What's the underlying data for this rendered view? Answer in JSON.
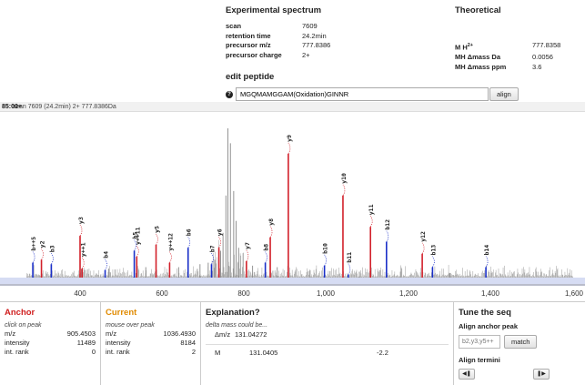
{
  "experimental": {
    "title": "Experimental spectrum",
    "rows": [
      {
        "label": "scan",
        "value": "7609"
      },
      {
        "label": "retention time",
        "value": "24.2min"
      },
      {
        "label": "precursor m/z",
        "value": "777.8386"
      },
      {
        "label": "precursor charge",
        "value": "2+"
      }
    ]
  },
  "theoretical": {
    "title": "Theoretical",
    "rows": [
      {
        "label": "M H2+",
        "value": "777.8358"
      },
      {
        "label": "MH Δmass Da",
        "value": "0.0056"
      },
      {
        "label": "MH Δmass ppm",
        "value": "3.6"
      }
    ]
  },
  "edit": {
    "title": "edit peptide",
    "peptide": "MGQMAMGGAM(Oxidation)GINNR",
    "align_label": "align",
    "help_icon": "question-icon"
  },
  "spectrum": {
    "header": "scan 7609 (24.2min) 2+ 777.8386Da",
    "overlay": "85:00+",
    "x_ticks": [
      "400",
      "600",
      "800",
      "1,000",
      "1,200",
      "1,400",
      "1,600"
    ]
  },
  "chart_data": {
    "type": "bar",
    "x_range": [
      270,
      1600
    ],
    "xlabel": "",
    "ylabel": "",
    "colors": {
      "b_ion": "#1a2fc8",
      "y_ion": "#d2202a",
      "unassigned": "#888888"
    },
    "annotated_peaks": [
      {
        "label": "b++5",
        "mz": 285,
        "intensity": 0.1,
        "ion": "b"
      },
      {
        "label": "y2",
        "mz": 306,
        "intensity": 0.12,
        "ion": "y"
      },
      {
        "label": "b3",
        "mz": 330,
        "intensity": 0.09,
        "ion": "b"
      },
      {
        "label": "y3",
        "mz": 400,
        "intensity": 0.28,
        "ion": "y"
      },
      {
        "label": "y++1",
        "mz": 405,
        "intensity": 0.06,
        "ion": "y"
      },
      {
        "label": "b4",
        "mz": 461,
        "intensity": 0.05,
        "ion": "b"
      },
      {
        "label": "b5",
        "mz": 532,
        "intensity": 0.18,
        "ion": "b"
      },
      {
        "label": "y++11",
        "mz": 538,
        "intensity": 0.14,
        "ion": "y"
      },
      {
        "label": "y5",
        "mz": 585,
        "intensity": 0.22,
        "ion": "y"
      },
      {
        "label": "y++12",
        "mz": 618,
        "intensity": 0.1,
        "ion": "y"
      },
      {
        "label": "b6",
        "mz": 663,
        "intensity": 0.2,
        "ion": "b"
      },
      {
        "label": "b7",
        "mz": 720,
        "intensity": 0.09,
        "ion": "b"
      },
      {
        "label": "y6",
        "mz": 738,
        "intensity": 0.2,
        "ion": "y"
      },
      {
        "label": "y7",
        "mz": 805,
        "intensity": 0.11,
        "ion": "y"
      },
      {
        "label": "b8",
        "mz": 851,
        "intensity": 0.1,
        "ion": "b"
      },
      {
        "label": "y8",
        "mz": 863,
        "intensity": 0.27,
        "ion": "y"
      },
      {
        "label": "y9",
        "mz": 907,
        "intensity": 0.83,
        "ion": "y"
      },
      {
        "label": "b10",
        "mz": 995,
        "intensity": 0.08,
        "ion": "b"
      },
      {
        "label": "y10",
        "mz": 1040,
        "intensity": 0.55,
        "ion": "y"
      },
      {
        "label": "b11",
        "mz": 1053,
        "intensity": 0.02,
        "ion": "b"
      },
      {
        "label": "y11",
        "mz": 1107,
        "intensity": 0.34,
        "ion": "y"
      },
      {
        "label": "b12",
        "mz": 1146,
        "intensity": 0.24,
        "ion": "b"
      },
      {
        "label": "y12",
        "mz": 1233,
        "intensity": 0.16,
        "ion": "y"
      },
      {
        "label": "b13",
        "mz": 1258,
        "intensity": 0.07,
        "ion": "b"
      },
      {
        "label": "b14",
        "mz": 1388,
        "intensity": 0.07,
        "ion": "b"
      }
    ],
    "unassigned_peaks": [
      {
        "mz": 760,
        "intensity": 1.0
      },
      {
        "mz": 766,
        "intensity": 0.9
      },
      {
        "mz": 755,
        "intensity": 0.55
      },
      {
        "mz": 774,
        "intensity": 0.58
      },
      {
        "mz": 780,
        "intensity": 0.38
      },
      {
        "mz": 748,
        "intensity": 0.3
      },
      {
        "mz": 742,
        "intensity": 0.18
      },
      {
        "mz": 786,
        "intensity": 0.2
      },
      {
        "mz": 728,
        "intensity": 0.12
      },
      {
        "mz": 712,
        "intensity": 0.1
      },
      {
        "mz": 692,
        "intensity": 0.09
      },
      {
        "mz": 640,
        "intensity": 0.07
      },
      {
        "mz": 560,
        "intensity": 0.07
      },
      {
        "mz": 470,
        "intensity": 0.06
      },
      {
        "mz": 820,
        "intensity": 0.08
      },
      {
        "mz": 880,
        "intensity": 0.07
      },
      {
        "mz": 960,
        "intensity": 0.05
      },
      {
        "mz": 1080,
        "intensity": 0.04
      },
      {
        "mz": 1180,
        "intensity": 0.04
      },
      {
        "mz": 1300,
        "intensity": 0.03
      }
    ]
  },
  "anchor": {
    "title": "Anchor",
    "sub": "click on peak",
    "rows": [
      {
        "label": "m/z",
        "value": "905.4503"
      },
      {
        "label": "intensity",
        "value": "11489"
      },
      {
        "label": "int. rank",
        "value": "0"
      }
    ]
  },
  "current": {
    "title": "Current",
    "sub": "mouse over peak",
    "rows": [
      {
        "label": "m/z",
        "value": "1036.4930"
      },
      {
        "label": "intensity",
        "value": "8184"
      },
      {
        "label": "int. rank",
        "value": "2"
      }
    ]
  },
  "explanation": {
    "title": "Explanation?",
    "sub": "delta mass could be...",
    "delta_label": "Δm/z",
    "delta_value": "131.04272",
    "row": {
      "a": "M",
      "b": "131.0405",
      "c": "-2.2"
    }
  },
  "tune": {
    "title": "Tune the seq",
    "align_anchor_label": "Align anchor peak",
    "anchor_placeholder": "b2,y3,y5++",
    "match_label": "match",
    "align_termini_label": "Align termini",
    "left_icon": "skip-left-icon",
    "right_icon": "skip-right-icon"
  }
}
